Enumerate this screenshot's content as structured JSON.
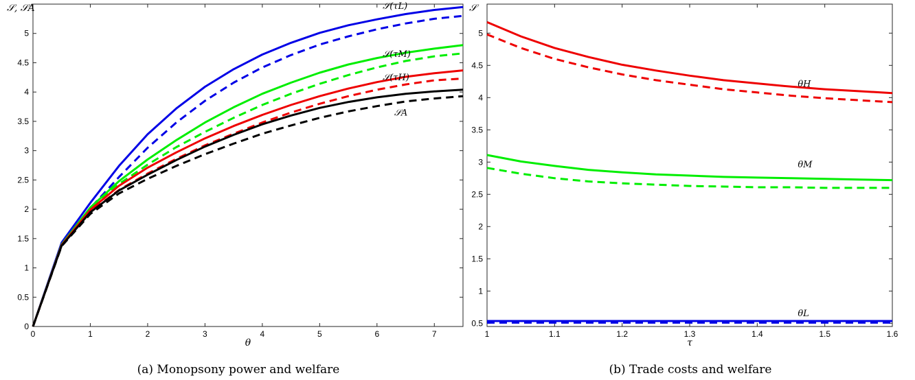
{
  "colors": {
    "blue": "#0000e6",
    "green": "#00ee00",
    "red": "#ee0000",
    "black": "#000000"
  },
  "chart_data": [
    {
      "type": "line",
      "caption": "(a) Monopsony power and welfare",
      "xlabel": "θ",
      "ylabel": "𝒮, 𝒮A",
      "xlim": [
        0,
        7.5
      ],
      "ylim": [
        0,
        5.5
      ],
      "xticks": [
        "0",
        "1",
        "2",
        "3",
        "4",
        "5",
        "6",
        "7"
      ],
      "yticks": [
        "0",
        "0.5",
        "1",
        "1.5",
        "2",
        "2.5",
        "3",
        "3.5",
        "4",
        "4.5",
        "5"
      ],
      "annotations": [
        {
          "text": "𝒮(τL)",
          "x": 6.1,
          "y": 5.42
        },
        {
          "text": "𝒮(τM)",
          "x": 6.1,
          "y": 4.6
        },
        {
          "text": "𝒮(τH)",
          "x": 6.1,
          "y": 4.2
        },
        {
          "text": "𝒮A",
          "x": 6.3,
          "y": 3.6
        }
      ],
      "series": [
        {
          "color": "blue",
          "dash": "solid",
          "x": [
            0,
            0.5,
            1,
            1.5,
            2,
            2.5,
            3,
            3.5,
            4,
            4.5,
            5,
            5.5,
            6,
            6.5,
            7,
            7.5
          ],
          "values": [
            0,
            1.43,
            2.11,
            2.74,
            3.28,
            3.72,
            4.09,
            4.39,
            4.64,
            4.84,
            5.01,
            5.14,
            5.24,
            5.33,
            5.4,
            5.45
          ]
        },
        {
          "color": "blue",
          "dash": "dashed",
          "x": [
            0,
            0.5,
            1,
            1.5,
            2,
            2.5,
            3,
            3.5,
            4,
            4.5,
            5,
            5.5,
            6,
            6.5,
            7,
            7.5
          ],
          "values": [
            0,
            1.4,
            2.02,
            2.55,
            3.05,
            3.48,
            3.85,
            4.16,
            4.42,
            4.63,
            4.81,
            4.95,
            5.07,
            5.17,
            5.25,
            5.3
          ]
        },
        {
          "color": "green",
          "dash": "solid",
          "x": [
            0,
            0.5,
            1,
            1.5,
            2,
            2.5,
            3,
            3.5,
            4,
            4.5,
            5,
            5.5,
            6,
            6.5,
            7,
            7.5
          ],
          "values": [
            0,
            1.4,
            2.03,
            2.48,
            2.85,
            3.18,
            3.48,
            3.74,
            3.97,
            4.16,
            4.33,
            4.47,
            4.58,
            4.67,
            4.74,
            4.8
          ]
        },
        {
          "color": "green",
          "dash": "dashed",
          "x": [
            0,
            0.5,
            1,
            1.5,
            2,
            2.5,
            3,
            3.5,
            4,
            4.5,
            5,
            5.5,
            6,
            6.5,
            7,
            7.5
          ],
          "values": [
            0,
            1.39,
            2.0,
            2.43,
            2.76,
            3.06,
            3.32,
            3.56,
            3.78,
            3.97,
            4.14,
            4.29,
            4.42,
            4.53,
            4.61,
            4.66
          ]
        },
        {
          "color": "red",
          "dash": "solid",
          "x": [
            0,
            0.5,
            1,
            1.5,
            2,
            2.5,
            3,
            3.5,
            4,
            4.5,
            5,
            5.5,
            6,
            6.5,
            7,
            7.5
          ],
          "values": [
            0,
            1.39,
            1.99,
            2.4,
            2.71,
            2.97,
            3.21,
            3.42,
            3.61,
            3.78,
            3.93,
            4.06,
            4.17,
            4.26,
            4.32,
            4.37
          ]
        },
        {
          "color": "red",
          "dash": "dashed",
          "x": [
            0,
            0.5,
            1,
            1.5,
            2,
            2.5,
            3,
            3.5,
            4,
            4.5,
            5,
            5.5,
            6,
            6.5,
            7,
            7.5
          ],
          "values": [
            0,
            1.38,
            1.96,
            2.33,
            2.61,
            2.86,
            3.09,
            3.29,
            3.48,
            3.65,
            3.8,
            3.93,
            4.04,
            4.13,
            4.2,
            4.23
          ]
        },
        {
          "color": "black",
          "dash": "solid",
          "x": [
            0,
            0.5,
            1,
            1.5,
            2,
            2.5,
            3,
            3.5,
            4,
            4.5,
            5,
            5.5,
            6,
            6.5,
            7,
            7.5
          ],
          "values": [
            0,
            1.38,
            1.95,
            2.32,
            2.59,
            2.84,
            3.07,
            3.27,
            3.45,
            3.6,
            3.73,
            3.83,
            3.91,
            3.97,
            4.01,
            4.04
          ]
        },
        {
          "color": "black",
          "dash": "dashed",
          "x": [
            0,
            0.5,
            1,
            1.5,
            2,
            2.5,
            3,
            3.5,
            4,
            4.5,
            5,
            5.5,
            6,
            6.5,
            7,
            7.5
          ],
          "values": [
            0,
            1.37,
            1.92,
            2.27,
            2.52,
            2.74,
            2.94,
            3.12,
            3.29,
            3.43,
            3.56,
            3.67,
            3.76,
            3.84,
            3.89,
            3.93
          ]
        }
      ]
    },
    {
      "type": "line",
      "caption": "(b) Trade costs and welfare",
      "xlabel": "τ",
      "ylabel": "𝒮",
      "xlim": [
        1,
        1.6
      ],
      "ylim": [
        0.45,
        5.45
      ],
      "xticks": [
        "1",
        "1.1",
        "1.2",
        "1.3",
        "1.4",
        "1.5",
        "1.6"
      ],
      "yticks": [
        "0.5",
        "1",
        "1.5",
        "2",
        "2.5",
        "3",
        "3.5",
        "4",
        "4.5",
        "5"
      ],
      "annotations": [
        {
          "text": "θH",
          "x": 1.46,
          "y": 4.17
        },
        {
          "text": "θM",
          "x": 1.46,
          "y": 2.92
        },
        {
          "text": "θL",
          "x": 1.46,
          "y": 0.61
        }
      ],
      "series": [
        {
          "color": "red",
          "dash": "solid",
          "x": [
            1.0,
            1.05,
            1.1,
            1.15,
            1.2,
            1.25,
            1.3,
            1.35,
            1.4,
            1.45,
            1.5,
            1.55,
            1.6
          ],
          "values": [
            5.17,
            4.95,
            4.77,
            4.63,
            4.51,
            4.42,
            4.34,
            4.27,
            4.22,
            4.17,
            4.13,
            4.1,
            4.07
          ]
        },
        {
          "color": "red",
          "dash": "dashed",
          "x": [
            1.0,
            1.05,
            1.1,
            1.15,
            1.2,
            1.25,
            1.3,
            1.35,
            1.4,
            1.45,
            1.5,
            1.55,
            1.6
          ],
          "values": [
            4.98,
            4.77,
            4.6,
            4.47,
            4.36,
            4.27,
            4.2,
            4.13,
            4.08,
            4.03,
            3.99,
            3.96,
            3.93
          ]
        },
        {
          "color": "green",
          "dash": "solid",
          "x": [
            1.0,
            1.05,
            1.1,
            1.15,
            1.2,
            1.25,
            1.3,
            1.35,
            1.4,
            1.45,
            1.5,
            1.55,
            1.6
          ],
          "values": [
            3.11,
            3.01,
            2.94,
            2.88,
            2.84,
            2.81,
            2.79,
            2.77,
            2.76,
            2.75,
            2.74,
            2.73,
            2.72
          ]
        },
        {
          "color": "green",
          "dash": "dashed",
          "x": [
            1.0,
            1.05,
            1.1,
            1.15,
            1.2,
            1.25,
            1.3,
            1.35,
            1.4,
            1.45,
            1.5,
            1.55,
            1.6
          ],
          "values": [
            2.91,
            2.82,
            2.75,
            2.7,
            2.67,
            2.65,
            2.63,
            2.62,
            2.61,
            2.61,
            2.6,
            2.6,
            2.6
          ]
        },
        {
          "color": "blue",
          "dash": "solid",
          "x": [
            1.0,
            1.1,
            1.2,
            1.3,
            1.4,
            1.5,
            1.6
          ],
          "values": [
            0.535,
            0.535,
            0.535,
            0.535,
            0.535,
            0.535,
            0.535
          ]
        },
        {
          "color": "blue",
          "dash": "dashed",
          "x": [
            1.0,
            1.1,
            1.2,
            1.3,
            1.4,
            1.5,
            1.6
          ],
          "values": [
            0.51,
            0.51,
            0.51,
            0.51,
            0.51,
            0.51,
            0.51
          ]
        }
      ]
    }
  ]
}
